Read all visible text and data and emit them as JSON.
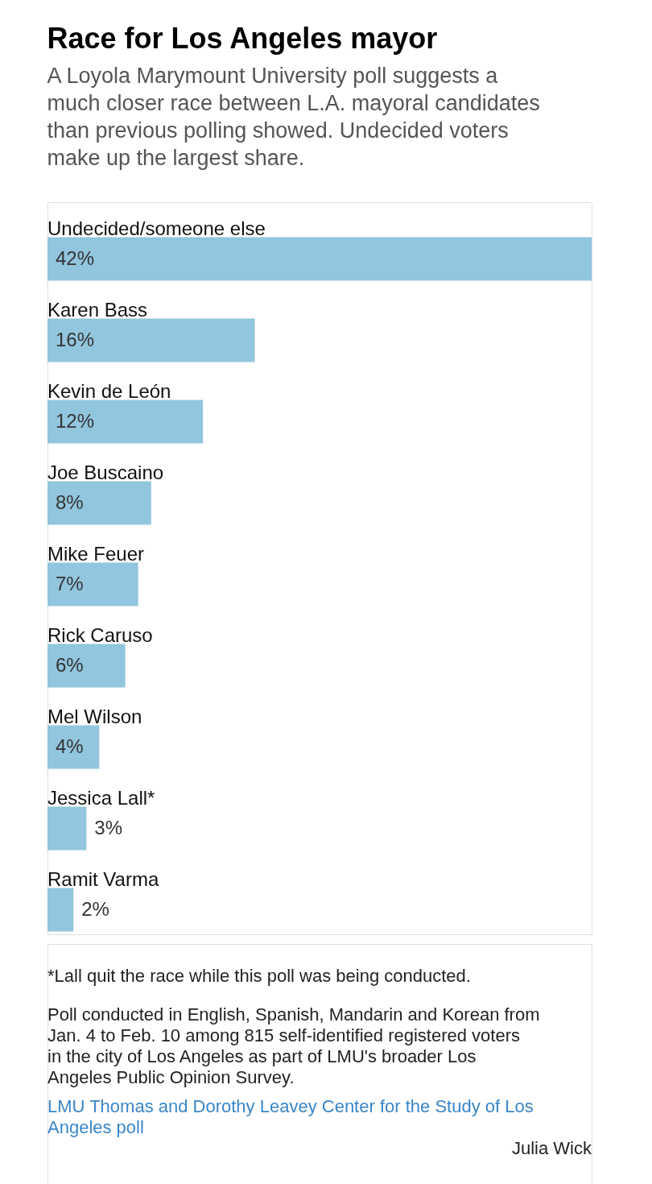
{
  "chart_data": {
    "type": "bar",
    "orientation": "horizontal",
    "title": "Race for Los Angeles mayor",
    "subtitle": "A Loyola Marymount University poll suggests a much closer race between L.A. mayoral candidates than previous polling showed. Undecided voters make up the largest share.",
    "categories": [
      "Undecided/someone else",
      "Karen Bass",
      "Kevin de León",
      "Joe Buscaino",
      "Mike Feuer",
      "Rick Caruso",
      "Mel Wilson",
      "Jessica Lall*",
      "Ramit Varma"
    ],
    "values": [
      42,
      16,
      12,
      8,
      7,
      6,
      4,
      3,
      2
    ],
    "value_labels": [
      "42%",
      "16%",
      "12%",
      "8%",
      "7%",
      "6%",
      "4%",
      "3%",
      "2%"
    ],
    "color": "#92c5de",
    "annotations": [
      "*Lall quit the race while this poll was being conducted.",
      "Poll conducted in English, Spanish, Mandarin and Korean from Jan. 4 to Feb. 10 among 815 self-identified registered voters in the city of Los Angeles as part of LMU's broader Los Angeles Public Opinion Survey.",
      "LMU Thomas and Dorothy Leavey Center for the Study of Los Angeles poll",
      "Julia Wick"
    ]
  }
}
